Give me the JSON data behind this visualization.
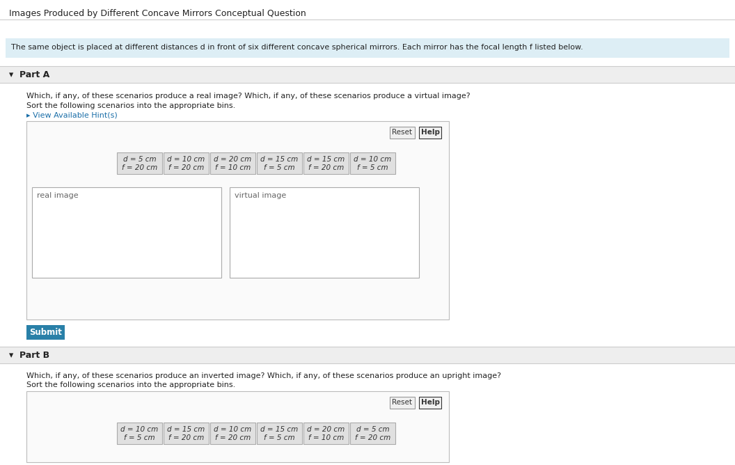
{
  "title": "Images Produced by Different Concave Mirrors Conceptual Question",
  "intro_text": "The same object is placed at different distances d in front of six different concave spherical mirrors. Each mirror has the focal length f listed below.",
  "part_a_label": "▾  Part A",
  "part_a_q1": "Which, if any, of these scenarios produce a real image? Which, if any, of these scenarios produce a virtual image?",
  "part_a_q2": "Sort the following scenarios into the appropriate bins.",
  "hint_text": "▸ View Available Hint(s)",
  "part_a_cards": [
    [
      "d = 5 cm",
      "f = 20 cm"
    ],
    [
      "d = 10 cm",
      "f = 20 cm"
    ],
    [
      "d = 20 cm",
      "f = 10 cm"
    ],
    [
      "d = 15 cm",
      "f = 5 cm"
    ],
    [
      "d = 15 cm",
      "f = 20 cm"
    ],
    [
      "d = 10 cm",
      "f = 5 cm"
    ]
  ],
  "bin_a_left": "real image",
  "bin_a_right": "virtual image",
  "submit_text": "Submit",
  "part_b_label": "▾  Part B",
  "part_b_q1": "Which, if any, of these scenarios produce an inverted image? Which, if any, of these scenarios produce an upright image?",
  "part_b_q2": "Sort the following scenarios into the appropriate bins.",
  "part_b_cards": [
    [
      "d = 10 cm",
      "f = 5 cm"
    ],
    [
      "d = 15 cm",
      "f = 20 cm"
    ],
    [
      "d = 10 cm",
      "f = 20 cm"
    ],
    [
      "d = 15 cm",
      "f = 5 cm"
    ],
    [
      "d = 20 cm",
      "f = 10 cm"
    ],
    [
      "d = 5 cm",
      "f = 20 cm"
    ]
  ],
  "reset_text": "Reset",
  "help_text": "Help",
  "bg_color": "#ffffff",
  "intro_bg": "#ddeef5",
  "part_header_bg": "#eeeeee",
  "card_bg": "#e0e0e0",
  "card_border": "#aaaaaa",
  "bin_bg": "#f5f5f5",
  "bin_border": "#aaaaaa",
  "submit_bg": "#2980a8",
  "submit_text_color": "#ffffff",
  "title_color": "#222222",
  "text_color": "#222222",
  "hint_color": "#1a6ea8",
  "separator_color": "#cccccc",
  "sort_box_border": "#bbbbbb"
}
